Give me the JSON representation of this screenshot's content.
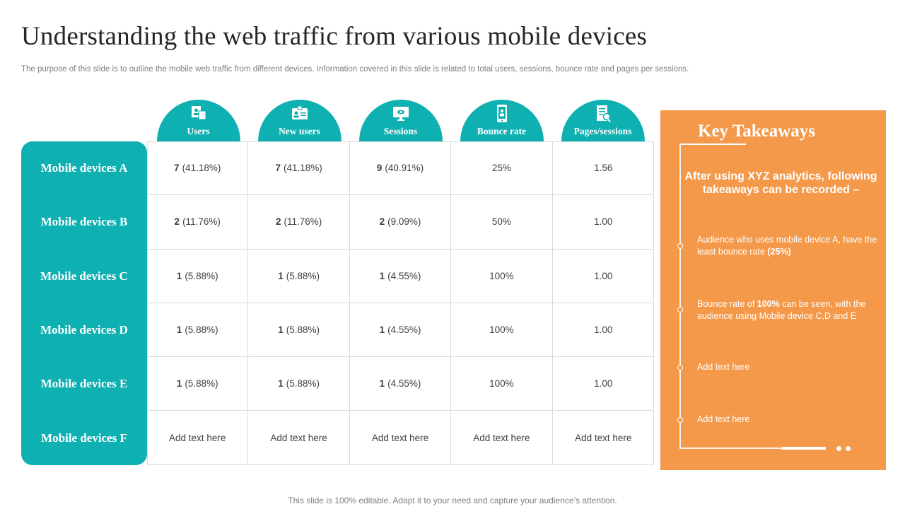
{
  "title": "Understanding the web traffic from various mobile devices",
  "subtitle": "The purpose of this slide is to outline the mobile web traffic from different devices. Information covered in this slide is related to total users, sessions, bounce rate and pages per sessions.",
  "columns": [
    {
      "label": "Users",
      "icon": "users-icon"
    },
    {
      "label": "New users",
      "icon": "id-card-icon"
    },
    {
      "label": "Sessions",
      "icon": "monitor-icon"
    },
    {
      "label": "Bounce rate",
      "icon": "mobile-user-icon"
    },
    {
      "label": "Pages/sessions",
      "icon": "report-icon"
    }
  ],
  "rows": [
    {
      "label": "Mobile devices A",
      "cells": [
        {
          "bold": "7",
          "rest": "(41.18%)"
        },
        {
          "bold": "7",
          "rest": "(41.18%)"
        },
        {
          "bold": "9",
          "rest": "(40.91%)"
        },
        {
          "bold": "",
          "rest": "25%"
        },
        {
          "bold": "",
          "rest": "1.56"
        }
      ]
    },
    {
      "label": "Mobile devices B",
      "cells": [
        {
          "bold": "2",
          "rest": "(11.76%)"
        },
        {
          "bold": "2",
          "rest": "(11.76%)"
        },
        {
          "bold": "2",
          "rest": "(9.09%)"
        },
        {
          "bold": "",
          "rest": "50%"
        },
        {
          "bold": "",
          "rest": "1.00"
        }
      ]
    },
    {
      "label": "Mobile devices C",
      "cells": [
        {
          "bold": "1",
          "rest": "(5.88%)"
        },
        {
          "bold": "1",
          "rest": "(5.88%)"
        },
        {
          "bold": "1",
          "rest": "(4.55%)"
        },
        {
          "bold": "",
          "rest": "100%"
        },
        {
          "bold": "",
          "rest": "1.00"
        }
      ]
    },
    {
      "label": "Mobile devices D",
      "cells": [
        {
          "bold": "1",
          "rest": "(5.88%)"
        },
        {
          "bold": "1",
          "rest": "(5.88%)"
        },
        {
          "bold": "1",
          "rest": "(4.55%)"
        },
        {
          "bold": "",
          "rest": "100%"
        },
        {
          "bold": "",
          "rest": "1.00"
        }
      ]
    },
    {
      "label": "Mobile devices E",
      "cells": [
        {
          "bold": "1",
          "rest": "(5.88%)"
        },
        {
          "bold": "1",
          "rest": "(5.88%)"
        },
        {
          "bold": "1",
          "rest": "(4.55%)"
        },
        {
          "bold": "",
          "rest": "100%"
        },
        {
          "bold": "",
          "rest": "1.00"
        }
      ]
    },
    {
      "label": "Mobile devices F",
      "cells": [
        {
          "bold": "",
          "rest": "Add text here"
        },
        {
          "bold": "",
          "rest": "Add text here"
        },
        {
          "bold": "",
          "rest": "Add text here"
        },
        {
          "bold": "",
          "rest": "Add text here"
        },
        {
          "bold": "",
          "rest": "Add text here"
        }
      ]
    }
  ],
  "takeaways": {
    "title": "Key Takeaways",
    "intro": "After using XYZ analytics, following takeaways can be recorded –",
    "item1": {
      "pre": "Audience who uses mobile device A, have the least bounce rate ",
      "bold": "(25%)",
      "post": ""
    },
    "item2": {
      "pre": "Bounce rate of ",
      "bold": "100%",
      "post": " can be seen, with the audience using Mobile device C,D and E"
    },
    "item3": "Add text here",
    "item4": "Add text here"
  },
  "footer": "This slide is 100% editable. Adapt it to your need and capture your audience’s attention.",
  "colors": {
    "teal": "#0fb0b2",
    "orange": "#f4994a",
    "grid": "#d9d9d9"
  }
}
